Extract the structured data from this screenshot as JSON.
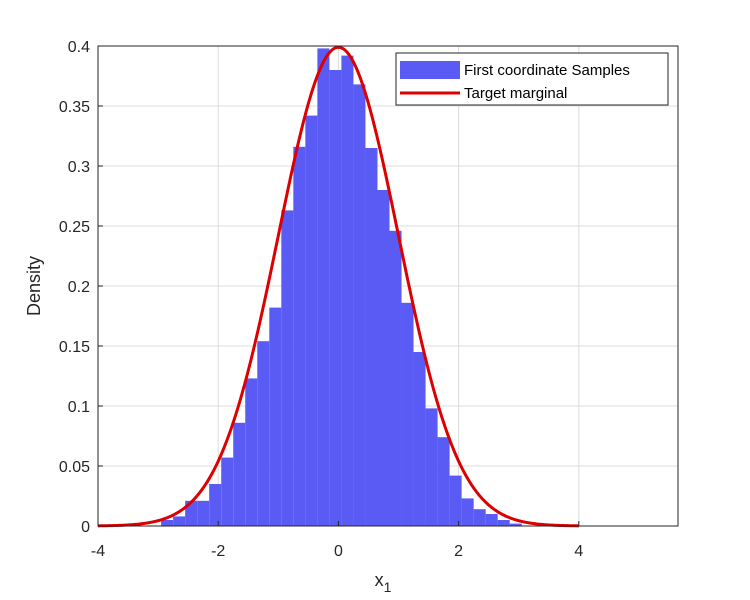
{
  "chart_data": {
    "type": "bar",
    "xlabel": "x",
    "xlabel_subscript": "1",
    "ylabel": "Density",
    "xlim": [
      -4,
      5.65
    ],
    "ylim": [
      0,
      0.4
    ],
    "grid": true,
    "legend_placement": "top-right",
    "x_ticks": [
      -4,
      -2,
      0,
      2,
      4
    ],
    "x_tick_labels": [
      "-4",
      "-2",
      "0",
      "2",
      "4"
    ],
    "y_ticks": [
      0,
      0.05,
      0.1,
      0.15,
      0.2,
      0.25,
      0.3,
      0.35,
      0.4
    ],
    "y_tick_labels": [
      "0",
      "0.05",
      "0.1",
      "0.15",
      "0.2",
      "0.25",
      "0.3",
      "0.35",
      "0.4"
    ],
    "series": [
      {
        "name": "First coordinate Samples",
        "kind": "histogram",
        "color": "#5a5af5",
        "bin_edges": [
          -2.95,
          -2.75,
          -2.55,
          -2.35,
          -2.15,
          -1.95,
          -1.75,
          -1.55,
          -1.35,
          -1.15,
          -0.95,
          -0.75,
          -0.55,
          -0.35,
          -0.15,
          0.05,
          0.25,
          0.45,
          0.65,
          0.85,
          1.05,
          1.25,
          1.45,
          1.65,
          1.85,
          2.05,
          2.25,
          2.45,
          2.65,
          2.85,
          3.05
        ],
        "values": [
          0.005,
          0.008,
          0.021,
          0.021,
          0.035,
          0.057,
          0.086,
          0.123,
          0.154,
          0.182,
          0.263,
          0.316,
          0.342,
          0.398,
          0.38,
          0.392,
          0.368,
          0.315,
          0.28,
          0.246,
          0.186,
          0.145,
          0.098,
          0.074,
          0.042,
          0.023,
          0.014,
          0.01,
          0.005,
          0.002
        ]
      },
      {
        "name": "Target marginal",
        "kind": "line",
        "color": "#dd0000",
        "function": "standard normal pdf",
        "x_range": [
          -4,
          4
        ]
      }
    ]
  }
}
